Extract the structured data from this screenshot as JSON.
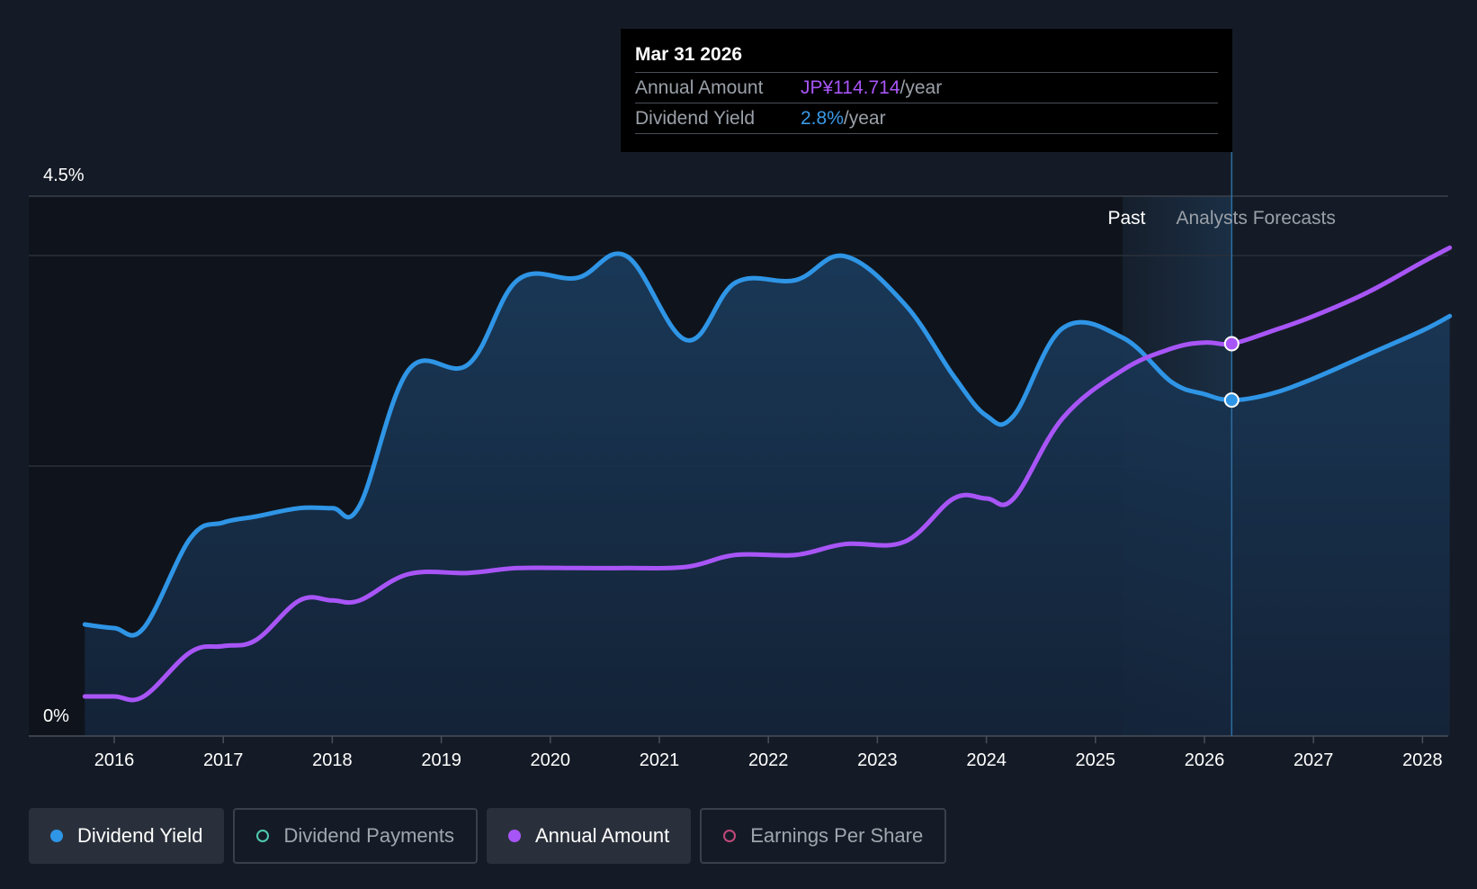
{
  "tooltip": {
    "date": "Mar 31 2026",
    "annual_label": "Annual Amount",
    "annual_value": "JP¥114.714",
    "annual_unit": "/year",
    "yield_label": "Dividend Yield",
    "yield_value": "2.8%",
    "yield_unit": "/year"
  },
  "legend": {
    "dividend_yield": "Dividend Yield",
    "dividend_payments": "Dividend Payments",
    "annual_amount": "Annual Amount",
    "earnings_per_share": "Earnings Per Share"
  },
  "colors": {
    "background": "#151b26",
    "yield": "#2f95e6",
    "annual": "#a855f7",
    "grid": "#2a303a",
    "axis": "#4a505a"
  },
  "chart_data": {
    "type": "line",
    "x_range": [
      2015.73,
      2028.25
    ],
    "ylim": [
      0,
      4.5
    ],
    "y_tick_labels": [
      "0%",
      "4.5%"
    ],
    "x_tick_labels": [
      "2016",
      "2017",
      "2018",
      "2019",
      "2020",
      "2021",
      "2022",
      "2023",
      "2024",
      "2025",
      "2026",
      "2027",
      "2028"
    ],
    "past_label": "Past",
    "forecast_label": "Analysts Forecasts",
    "past_end": 2025.25,
    "forecast_start": 2025.6,
    "highlight_x": 2026.25,
    "series": [
      {
        "name": "Dividend Yield",
        "unit": "%",
        "area": true,
        "x": [
          2015.73,
          2016.0,
          2016.27,
          2016.7,
          2017.0,
          2017.3,
          2017.7,
          2018.0,
          2018.25,
          2018.7,
          2019.25,
          2019.7,
          2020.25,
          2020.7,
          2021.25,
          2021.7,
          2022.25,
          2022.7,
          2023.25,
          2023.7,
          2024.0,
          2024.25,
          2024.7,
          2025.25,
          2025.7,
          2026.0,
          2026.25,
          2026.6,
          2027.0,
          2027.5,
          2028.0,
          2028.25
        ],
        "values": [
          0.93,
          0.9,
          0.9,
          1.65,
          1.78,
          1.83,
          1.9,
          1.9,
          1.92,
          3.05,
          3.1,
          3.8,
          3.82,
          4.0,
          3.3,
          3.78,
          3.8,
          4.0,
          3.6,
          3.0,
          2.67,
          2.67,
          3.4,
          3.32,
          2.95,
          2.85,
          2.8,
          2.85,
          2.98,
          3.18,
          3.38,
          3.5
        ]
      },
      {
        "name": "Annual Amount",
        "unit": "JP¥",
        "area": false,
        "x": [
          2015.73,
          2016.0,
          2016.27,
          2016.7,
          2017.0,
          2017.3,
          2017.7,
          2018.0,
          2018.25,
          2018.7,
          2019.25,
          2019.7,
          2020.25,
          2020.7,
          2021.25,
          2021.7,
          2022.25,
          2022.7,
          2023.25,
          2023.7,
          2024.0,
          2024.25,
          2024.7,
          2025.25,
          2025.7,
          2026.0,
          2026.25,
          2026.6,
          2027.0,
          2027.5,
          2028.0,
          2028.25
        ],
        "values": [
          0.33,
          0.33,
          0.33,
          0.7,
          0.75,
          0.8,
          1.13,
          1.13,
          1.13,
          1.35,
          1.36,
          1.4,
          1.4,
          1.4,
          1.41,
          1.51,
          1.51,
          1.6,
          1.62,
          1.98,
          1.98,
          1.98,
          2.65,
          3.05,
          3.23,
          3.28,
          3.27,
          3.37,
          3.5,
          3.7,
          3.95,
          4.07
        ]
      }
    ]
  }
}
